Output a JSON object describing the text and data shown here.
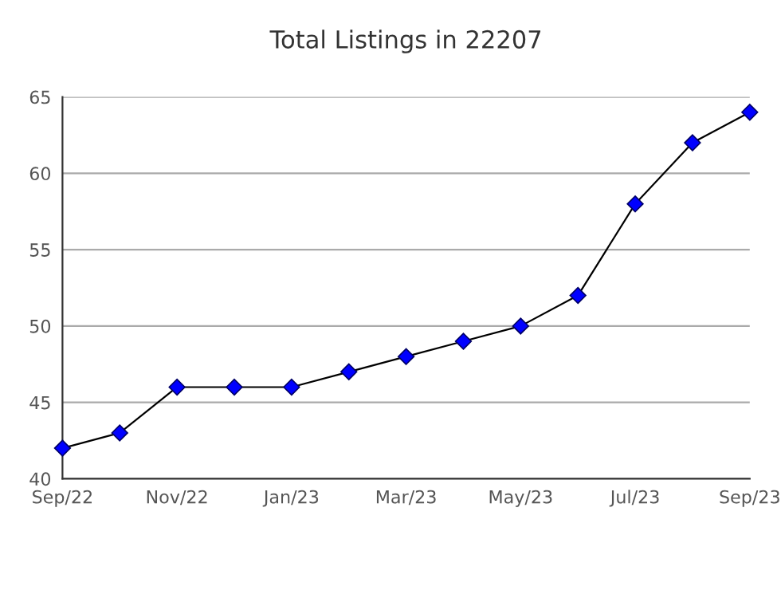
{
  "chart_data": {
    "type": "line",
    "title": "Total Listings in 22207",
    "categories": [
      "Sep/22",
      null,
      "Nov/22",
      null,
      "Jan/23",
      null,
      "Mar/23",
      null,
      "May/23",
      null,
      "Jul/23",
      null,
      "Sep/23"
    ],
    "series": [
      {
        "color": "#0000ff",
        "values": [
          42,
          43,
          46,
          46,
          46,
          47,
          48,
          49,
          50,
          52,
          58,
          62,
          64
        ]
      }
    ],
    "ylim": [
      40,
      65
    ],
    "yticks": [
      40,
      45,
      50,
      55,
      60,
      65
    ],
    "grid": "y",
    "marker": "diamond",
    "line_style": "solid"
  }
}
